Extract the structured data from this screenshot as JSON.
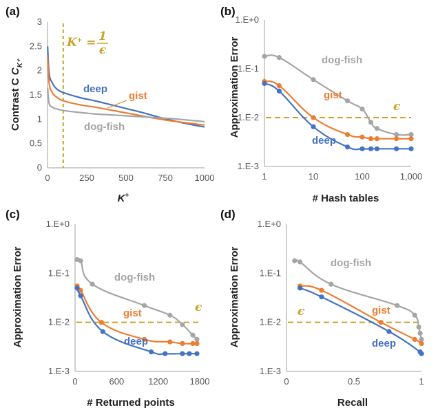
{
  "colors": {
    "deep": "#4472c4",
    "gist": "#ed7d31",
    "dog-fish": "#a5a5a5",
    "epsilon": "#c9a227",
    "axis": "#bfbfbf"
  },
  "chart_data": [
    {
      "panel": "(a)",
      "type": "line",
      "xlabel": "K⁺",
      "ylabel": "Contrast C",
      "ylabel_sub": "K⁺",
      "xlim": [
        0,
        1000
      ],
      "ylim": [
        0,
        3
      ],
      "xticks": [
        "0",
        "250",
        "500",
        "750",
        "1000"
      ],
      "yticks": [
        "0",
        "0.5",
        "1",
        "1.5",
        "2",
        "2.5",
        "3"
      ],
      "annotation": {
        "text": "K⁺ = ",
        "numerator": "1",
        "denominator": "ϵ",
        "x": 100
      },
      "series": [
        {
          "name": "deep",
          "x": [
            1,
            10,
            30,
            60,
            100,
            200,
            300,
            400,
            500,
            600,
            700,
            800,
            900,
            1000
          ],
          "y": [
            2.5,
            1.95,
            1.75,
            1.62,
            1.55,
            1.45,
            1.38,
            1.3,
            1.22,
            1.14,
            1.05,
            0.97,
            0.9,
            0.84
          ]
        },
        {
          "name": "gist",
          "x": [
            1,
            10,
            30,
            60,
            100,
            200,
            300,
            400,
            500,
            600,
            700,
            800,
            900,
            1000
          ],
          "y": [
            2.3,
            1.75,
            1.55,
            1.45,
            1.38,
            1.3,
            1.25,
            1.19,
            1.13,
            1.07,
            1.01,
            0.96,
            0.92,
            0.88
          ]
        },
        {
          "name": "dog-fish",
          "x": [
            1,
            10,
            30,
            60,
            100,
            200,
            300,
            400,
            500,
            600,
            700,
            800,
            900,
            1000
          ],
          "y": [
            1.65,
            1.33,
            1.25,
            1.21,
            1.18,
            1.14,
            1.11,
            1.09,
            1.07,
            1.05,
            1.03,
            1.01,
            0.98,
            0.95
          ]
        }
      ]
    },
    {
      "panel": "(b)",
      "type": "line",
      "xlabel": "# Hash tables",
      "ylabel": "Approximation Error",
      "xscale": "log",
      "yscale": "log",
      "xlim": [
        1,
        1000
      ],
      "ylim": [
        0.001,
        1
      ],
      "xticks": [
        "1",
        "10",
        "100",
        "1,000"
      ],
      "yticks": [
        "1.E+0",
        "1.E-1",
        "1.E-2",
        "1.E-3"
      ],
      "epsilon": {
        "label": "ϵ",
        "y": 0.01
      },
      "series": [
        {
          "name": "dog-fish",
          "x": [
            1,
            2,
            10,
            50,
            100,
            150,
            200,
            500,
            1000
          ],
          "y": [
            0.18,
            0.17,
            0.06,
            0.022,
            0.015,
            0.008,
            0.006,
            0.0045,
            0.0045
          ]
        },
        {
          "name": "gist",
          "x": [
            1,
            2,
            10,
            50,
            100,
            150,
            200,
            500,
            1000
          ],
          "y": [
            0.055,
            0.045,
            0.01,
            0.0045,
            0.004,
            0.0037,
            0.0037,
            0.0037,
            0.0037
          ]
        },
        {
          "name": "deep",
          "x": [
            1,
            2,
            10,
            50,
            100,
            150,
            200,
            500,
            1000
          ],
          "y": [
            0.05,
            0.035,
            0.0065,
            0.0025,
            0.0023,
            0.0023,
            0.0023,
            0.0023,
            0.0023
          ]
        }
      ]
    },
    {
      "panel": "(c)",
      "type": "line",
      "xlabel": "# Returned points",
      "ylabel": "Approximation Error",
      "yscale": "log",
      "xlim": [
        0,
        1800
      ],
      "ylim": [
        0.001,
        1
      ],
      "xticks": [
        "0",
        "600",
        "1200",
        "1800"
      ],
      "yticks": [
        "1.E+0",
        "1.E-1",
        "1.E-2",
        "1.E-3"
      ],
      "epsilon": {
        "label": "ϵ",
        "y": 0.01
      },
      "series": [
        {
          "name": "dog-fish",
          "x": [
            30,
            80,
            250,
            1000,
            1370,
            1550,
            1700,
            1760
          ],
          "y": [
            0.19,
            0.18,
            0.06,
            0.022,
            0.014,
            0.009,
            0.0055,
            0.0045
          ]
        },
        {
          "name": "gist",
          "x": [
            30,
            80,
            380,
            1000,
            1370,
            1550,
            1700,
            1760
          ],
          "y": [
            0.055,
            0.045,
            0.01,
            0.0045,
            0.004,
            0.0037,
            0.0037,
            0.0037
          ]
        },
        {
          "name": "deep",
          "x": [
            30,
            80,
            400,
            1100,
            1300,
            1550,
            1650,
            1760
          ],
          "y": [
            0.05,
            0.035,
            0.0065,
            0.0025,
            0.0023,
            0.0023,
            0.0023,
            0.0023
          ]
        }
      ]
    },
    {
      "panel": "(d)",
      "type": "line",
      "xlabel": "Recall",
      "ylabel": "Approximation Error",
      "yscale": "log",
      "xlim": [
        0,
        1
      ],
      "ylim": [
        0.001,
        1
      ],
      "xticks": [
        "0",
        "0.5",
        "1"
      ],
      "yticks": [
        "1.E+0",
        "1.E-1",
        "1.E-2",
        "1.E-3"
      ],
      "epsilon": {
        "label": "ϵ",
        "y": 0.01
      },
      "series": [
        {
          "name": "dog-fish",
          "x": [
            0.06,
            0.1,
            0.33,
            0.82,
            0.95,
            0.98,
            0.99,
            1.0
          ],
          "y": [
            0.18,
            0.17,
            0.06,
            0.022,
            0.014,
            0.008,
            0.006,
            0.0045
          ]
        },
        {
          "name": "gist",
          "x": [
            0.1,
            0.26,
            0.7,
            0.95,
            1.0
          ],
          "y": [
            0.055,
            0.045,
            0.01,
            0.0045,
            0.0037
          ]
        },
        {
          "name": "deep",
          "x": [
            0.1,
            0.26,
            0.76,
            0.99,
            1.0
          ],
          "y": [
            0.05,
            0.033,
            0.0065,
            0.0025,
            0.0023
          ]
        }
      ]
    }
  ]
}
